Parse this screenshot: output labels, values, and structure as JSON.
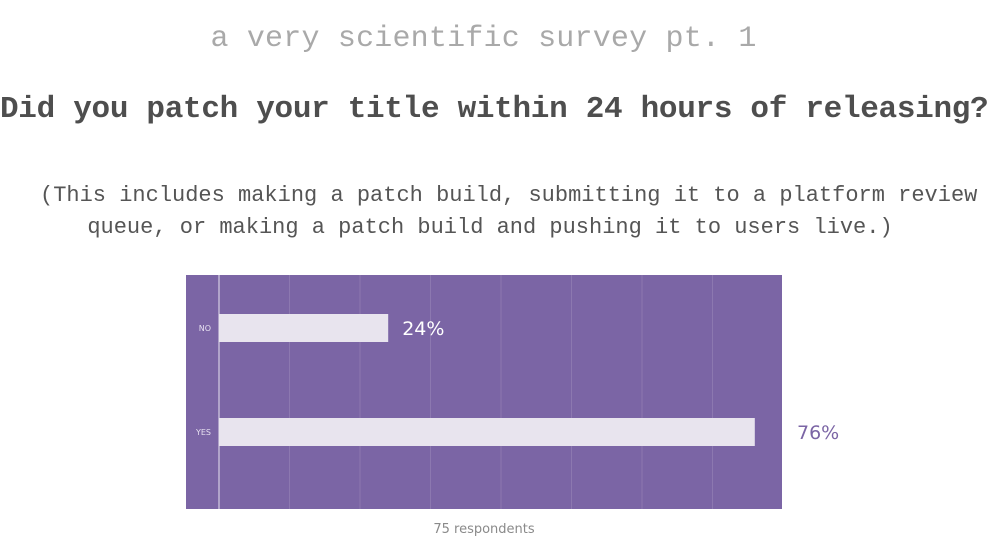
{
  "supertitle": "a very scientific survey pt. 1",
  "question": "Did you patch your title within 24 hours of releasing?",
  "note_line1": "(This includes making a patch build, submitting it to a platform review",
  "note_line2": "queue, or making a patch build and pushing it to users live.)",
  "footer": "75 respondents",
  "colors": {
    "panel": "#7b65a5",
    "bar": "#e8e4ee",
    "inside_label": "#ffffff",
    "outside_label": "#7b65a5"
  },
  "chart_data": {
    "type": "bar",
    "orientation": "horizontal",
    "categories": [
      "NO",
      "YES"
    ],
    "values": [
      24,
      76
    ],
    "value_labels": [
      "24%",
      "76%"
    ],
    "xlim": [
      0,
      80
    ],
    "grid": true
  }
}
